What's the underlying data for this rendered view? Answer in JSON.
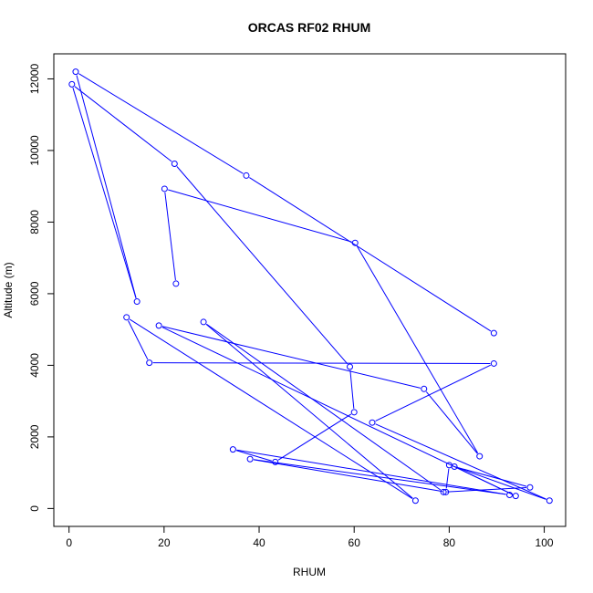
{
  "chart_data": {
    "type": "line",
    "title": "ORCAS RF02 RHUM",
    "xlabel": "RHUM",
    "ylabel": "Altitude (m)",
    "xlim": [
      -3.2,
      104.5
    ],
    "ylim": [
      -500,
      12700
    ],
    "xticks": [
      0,
      20,
      40,
      60,
      80,
      100
    ],
    "yticks": [
      0,
      2000,
      4000,
      6000,
      8000,
      10000,
      12000
    ],
    "grid": false,
    "legend": "none",
    "colors": {
      "series": "#0000ff",
      "axis": "#000000",
      "background": "#ffffff"
    },
    "series": [
      {
        "marker": "open-circle",
        "x": [
          89.4,
          37.3,
          1.4,
          14.3,
          0.6,
          22.2,
          59.1,
          60.0,
          43.4,
          34.5,
          92.7,
          38.1,
          79.3,
          80.0,
          97.0,
          78.8,
          28.3,
          72.9,
          12.1,
          16.9,
          89.4,
          63.8,
          101.1,
          81.1,
          94.0,
          18.9,
          74.7,
          86.4,
          60.2,
          20.1,
          22.5
        ],
        "y": [
          4900,
          9300,
          12200,
          5780,
          11850,
          9630,
          3960,
          2690,
          1300,
          1650,
          380,
          1380,
          460,
          1210,
          590,
          460,
          5210,
          220,
          5340,
          4070,
          4050,
          2400,
          220,
          1170,
          350,
          5110,
          3340,
          1460,
          7420,
          8930,
          6280
        ]
      }
    ]
  }
}
